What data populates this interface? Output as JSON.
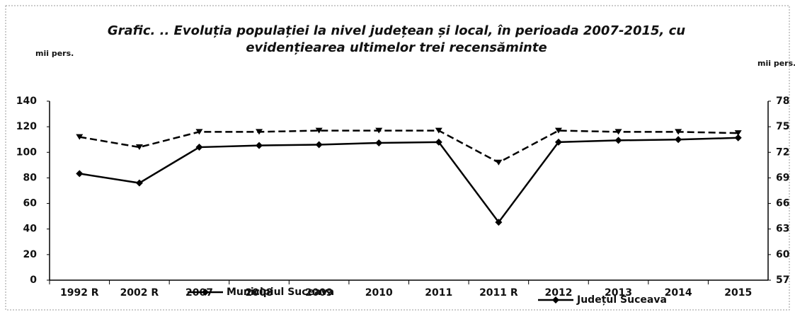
{
  "chart_data": {
    "type": "line",
    "title": [
      "Grafic. .. Evoluția populației la nivel județean și local, în perioada 2007-2015, cu",
      "evidențiearea ultimelor trei recensăminte"
    ],
    "y_label": "mii pers.",
    "y2_label": "mii pers.",
    "categories": [
      "1992 R",
      "2002 R",
      "2007",
      "2008",
      "2009",
      "2010",
      "2011",
      "2011 R",
      "2012",
      "2013",
      "2014",
      "2015"
    ],
    "series": [
      {
        "name": "Municipiul Suceava",
        "color": "#000000",
        "dashed": true,
        "values": [
          112,
          104,
          116,
          116,
          117,
          117,
          117,
          92,
          117,
          116,
          116,
          115
        ]
      },
      {
        "name": "Județul Suceava",
        "color": "#000000",
        "axis": "y2",
        "values": [
          69.5,
          68.4,
          72.6,
          72.8,
          72.9,
          73.1,
          73.2,
          63.8,
          73.2,
          73.4,
          73.5,
          73.7
        ]
      }
    ],
    "ylim": [
      0,
      140
    ],
    "yticks": [
      0,
      20,
      40,
      60,
      80,
      100,
      120,
      140
    ],
    "y2lim": [
      57,
      78
    ],
    "y2ticks": [
      57,
      60,
      63,
      66,
      69,
      72,
      75,
      78
    ]
  }
}
